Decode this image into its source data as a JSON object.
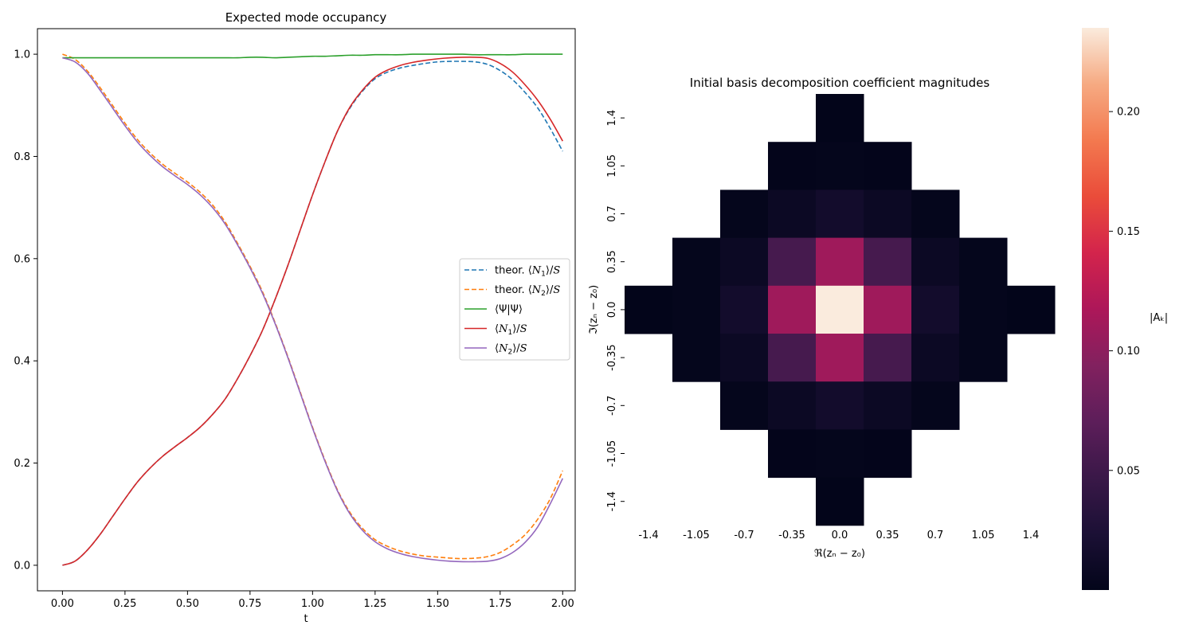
{
  "chart_data": [
    {
      "type": "line",
      "title": "Expected mode occupancy",
      "xlabel": "t",
      "ylabel": "",
      "xlim": [
        -0.1,
        2.05
      ],
      "ylim": [
        -0.05,
        1.05
      ],
      "xticks": [
        0.0,
        0.25,
        0.5,
        0.75,
        1.0,
        1.25,
        1.5,
        1.75,
        2.0
      ],
      "xtick_labels": [
        "0.00",
        "0.25",
        "0.50",
        "0.75",
        "1.00",
        "1.25",
        "1.50",
        "1.75",
        "2.00"
      ],
      "yticks": [
        0.0,
        0.2,
        0.4,
        0.6,
        0.8,
        1.0
      ],
      "ytick_labels": [
        "0.0",
        "0.2",
        "0.4",
        "0.6",
        "0.8",
        "1.0"
      ],
      "legend_placement": "center-right",
      "x": [
        0.0,
        0.05,
        0.1,
        0.15,
        0.2,
        0.25,
        0.3,
        0.35,
        0.4,
        0.45,
        0.5,
        0.55,
        0.6,
        0.65,
        0.7,
        0.75,
        0.8,
        0.85,
        0.9,
        0.95,
        1.0,
        1.05,
        1.1,
        1.15,
        1.2,
        1.25,
        1.3,
        1.35,
        1.4,
        1.45,
        1.5,
        1.55,
        1.6,
        1.65,
        1.7,
        1.75,
        1.8,
        1.85,
        1.9,
        1.95,
        2.0
      ],
      "series": [
        {
          "name": "theor. ⟨N₁⟩/S",
          "color": "#1f77b4",
          "style": "dashed",
          "values": [
            0.0,
            0.008,
            0.03,
            0.06,
            0.095,
            0.13,
            0.163,
            0.19,
            0.213,
            0.232,
            0.25,
            0.27,
            0.295,
            0.325,
            0.365,
            0.41,
            0.46,
            0.52,
            0.585,
            0.655,
            0.725,
            0.79,
            0.85,
            0.895,
            0.928,
            0.952,
            0.965,
            0.973,
            0.978,
            0.982,
            0.985,
            0.986,
            0.986,
            0.985,
            0.98,
            0.968,
            0.95,
            0.925,
            0.895,
            0.855,
            0.81
          ]
        },
        {
          "name": "theor. ⟨N₂⟩/S",
          "color": "#ff7f0e",
          "style": "dashed",
          "values": [
            1.0,
            0.99,
            0.967,
            0.935,
            0.9,
            0.865,
            0.833,
            0.807,
            0.785,
            0.767,
            0.75,
            0.73,
            0.705,
            0.672,
            0.63,
            0.585,
            0.535,
            0.475,
            0.41,
            0.34,
            0.27,
            0.205,
            0.147,
            0.103,
            0.072,
            0.05,
            0.037,
            0.028,
            0.022,
            0.018,
            0.016,
            0.014,
            0.013,
            0.014,
            0.017,
            0.025,
            0.04,
            0.06,
            0.09,
            0.13,
            0.185
          ]
        },
        {
          "name": "⟨Ψ|Ψ⟩",
          "color": "#2ca02c",
          "style": "solid",
          "values": [
            0.993,
            0.993,
            0.993,
            0.993,
            0.993,
            0.993,
            0.993,
            0.993,
            0.993,
            0.993,
            0.993,
            0.993,
            0.993,
            0.993,
            0.993,
            0.994,
            0.994,
            0.993,
            0.994,
            0.995,
            0.996,
            0.996,
            0.997,
            0.998,
            0.998,
            0.999,
            0.999,
            0.999,
            1.0,
            1.0,
            1.0,
            1.0,
            1.0,
            0.999,
            0.999,
            0.999,
            0.999,
            1.0,
            1.0,
            1.0,
            1.0
          ]
        },
        {
          "name": "⟨N₁⟩/S",
          "color": "#d62728",
          "style": "solid",
          "values": [
            0.0,
            0.008,
            0.03,
            0.06,
            0.095,
            0.13,
            0.163,
            0.19,
            0.213,
            0.232,
            0.25,
            0.27,
            0.295,
            0.325,
            0.365,
            0.41,
            0.46,
            0.52,
            0.585,
            0.655,
            0.725,
            0.79,
            0.85,
            0.897,
            0.93,
            0.955,
            0.969,
            0.978,
            0.984,
            0.988,
            0.991,
            0.993,
            0.994,
            0.994,
            0.992,
            0.982,
            0.965,
            0.94,
            0.91,
            0.873,
            0.83
          ]
        },
        {
          "name": "⟨N₂⟩/S",
          "color": "#9467bd",
          "style": "solid",
          "values": [
            0.993,
            0.985,
            0.963,
            0.93,
            0.895,
            0.86,
            0.828,
            0.802,
            0.78,
            0.762,
            0.745,
            0.725,
            0.7,
            0.668,
            0.627,
            0.582,
            0.532,
            0.473,
            0.408,
            0.338,
            0.268,
            0.203,
            0.145,
            0.1,
            0.068,
            0.046,
            0.032,
            0.023,
            0.017,
            0.013,
            0.01,
            0.008,
            0.007,
            0.007,
            0.008,
            0.013,
            0.025,
            0.045,
            0.075,
            0.12,
            0.17
          ]
        }
      ],
      "legend_labels": [
        {
          "prefix": "theor. ⟨",
          "var": "N",
          "sub": "1",
          "suffix": "⟩/",
          "var2": "S"
        },
        {
          "prefix": "theor. ⟨",
          "var": "N",
          "sub": "2",
          "suffix": "⟩/",
          "var2": "S"
        },
        {
          "prefix": "⟨Ψ|Ψ⟩",
          "var": "",
          "sub": "",
          "suffix": "",
          "var2": ""
        },
        {
          "prefix": "⟨",
          "var": "N",
          "sub": "1",
          "suffix": "⟩/",
          "var2": "S"
        },
        {
          "prefix": "⟨",
          "var": "N",
          "sub": "2",
          "suffix": "⟩/",
          "var2": "S"
        }
      ]
    },
    {
      "type": "heatmap",
      "title": "Initial basis decomposition coefficient magnitudes",
      "xlabel": "ℜ(zₙ − z₀)",
      "ylabel": "ℑ(zₙ − z₀)",
      "colorbar_label": "|Aₖ|",
      "colorbar_range": [
        0.0,
        0.235
      ],
      "colorbar_ticks": [
        0.05,
        0.1,
        0.15,
        0.2
      ],
      "colorbar_tick_labels": [
        "0.05",
        "0.10",
        "0.15",
        "0.20"
      ],
      "columns": [
        -1.4,
        -1.05,
        -0.7,
        -0.35,
        0.0,
        0.35,
        0.7,
        1.05,
        1.4
      ],
      "rows": [
        1.4,
        1.05,
        0.7,
        0.35,
        0.0,
        -0.35,
        -0.7,
        -1.05,
        -1.4
      ],
      "tick_labels": [
        "-1.4",
        "-1.05",
        "-0.7",
        "-0.35",
        "0.0",
        "0.35",
        "0.7",
        "1.05",
        "1.4"
      ],
      "row_tick_labels": [
        "1.4",
        "1.05",
        "0.7",
        "0.35",
        "0.0",
        "-0.35",
        "-0.7",
        "-1.05",
        "-1.4"
      ],
      "grid": [
        [
          null,
          null,
          null,
          null,
          0.0002,
          null,
          null,
          null,
          null
        ],
        [
          null,
          null,
          null,
          0.0005,
          0.002,
          0.0005,
          null,
          null,
          null
        ],
        [
          null,
          null,
          0.002,
          0.009,
          0.016,
          0.009,
          0.002,
          null,
          null
        ],
        [
          null,
          0.002,
          0.009,
          0.055,
          0.11,
          0.055,
          0.009,
          0.002,
          null
        ],
        [
          0.0002,
          0.002,
          0.016,
          0.11,
          0.235,
          0.11,
          0.016,
          0.002,
          0.0002
        ],
        [
          null,
          0.002,
          0.009,
          0.055,
          0.11,
          0.055,
          0.009,
          0.002,
          null
        ],
        [
          null,
          null,
          0.002,
          0.009,
          0.016,
          0.009,
          0.002,
          null,
          null
        ],
        [
          null,
          null,
          null,
          0.0005,
          0.002,
          0.0005,
          null,
          null,
          null
        ],
        [
          null,
          null,
          null,
          null,
          0.0002,
          null,
          null,
          null,
          null
        ]
      ]
    }
  ]
}
